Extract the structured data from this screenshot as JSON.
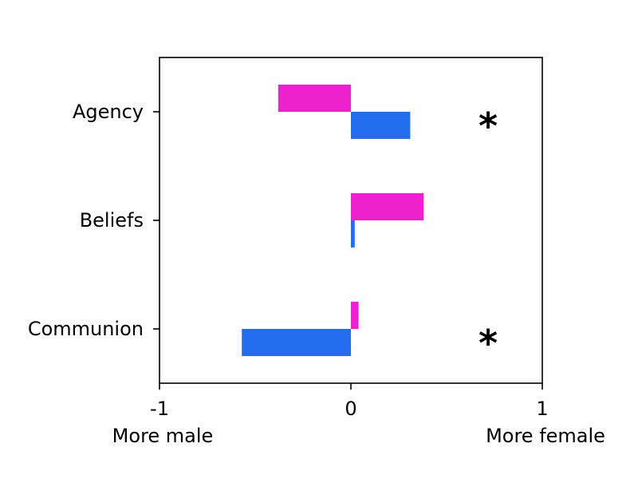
{
  "chart_data": {
    "type": "bar",
    "orientation": "horizontal",
    "categories": [
      "Agency",
      "Beliefs",
      "Communion"
    ],
    "series": [
      {
        "color": "#ee22cc",
        "values": [
          -0.38,
          0.38,
          0.04
        ]
      },
      {
        "color": "#226eee",
        "values": [
          0.31,
          0.02,
          -0.57
        ]
      }
    ],
    "xlim": [
      -1,
      1
    ],
    "xticks": [
      "-1",
      "0",
      "1"
    ],
    "x_extremes": {
      "left": "More male",
      "right": "More female"
    },
    "significance": [
      "*",
      "",
      "*"
    ],
    "grid": false
  }
}
